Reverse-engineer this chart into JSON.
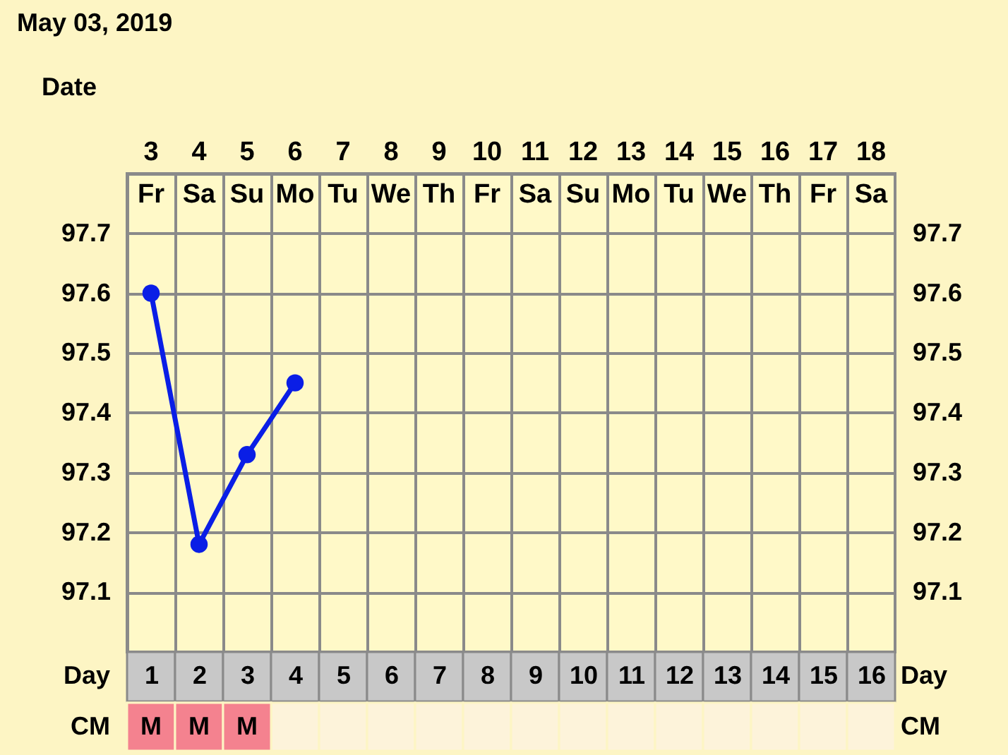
{
  "chart_data": {
    "type": "line",
    "title": "May 03, 2019",
    "xlabel": "Date",
    "x2label": "Day",
    "categories": [
      "3\nFr",
      "4\nSa",
      "5\nSu",
      "6\nMo",
      "7\nTu",
      "8\nWe",
      "9\nTh",
      "10\nFr",
      "11\nSa",
      "12\nSu",
      "13\nMo",
      "14\nTu",
      "15\nWe",
      "16\nTh",
      "17\nFr",
      "18\nSa"
    ],
    "series": [
      {
        "color": "#0a1ee6",
        "values": [
          97.6,
          97.18,
          97.33,
          97.45,
          null,
          null,
          null,
          null,
          null,
          null,
          null,
          null,
          null,
          null,
          null,
          null
        ]
      }
    ],
    "ylim": [
      97.0,
      97.8
    ],
    "yticks": [
      {
        "value": 97.0,
        "label": null
      },
      97.1,
      97.2,
      97.3,
      97.4,
      97.5,
      97.6,
      97.7,
      {
        "value": 97.8,
        "label": null
      }
    ],
    "y2lim": [
      97.0,
      97.8
    ],
    "y2ticks": [
      97.1,
      97.2,
      97.3,
      97.4,
      97.5,
      97.6,
      97.7
    ],
    "x2lim": [
      0.5,
      16.5
    ],
    "x2ticks": [
      1,
      2,
      3,
      4,
      5,
      6,
      7,
      8,
      9,
      10,
      11,
      12,
      13,
      14,
      15,
      16
    ],
    "annotations": [
      "CM",
      "M",
      "M",
      "M"
    ],
    "grid": true,
    "marker": "circle",
    "line_style": "solid"
  }
}
